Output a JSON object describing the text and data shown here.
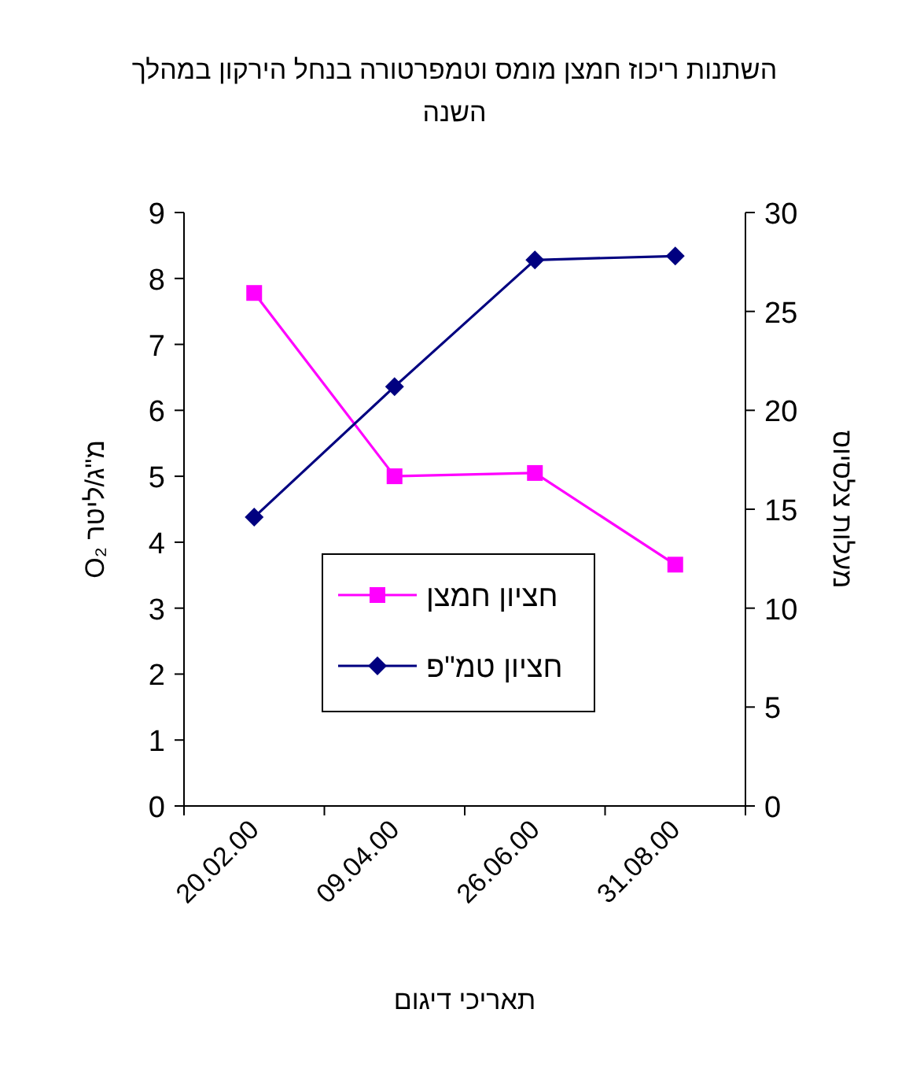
{
  "chart_data": {
    "type": "line",
    "title": "השתנות ריכוז חמצן מומס וטמפרטורה בנחל הירקון במהלך השנה",
    "xlabel": "תאריכי דיגום",
    "ylabel": "מ\"ג/ליטר O₂",
    "y2label": "מעלות צלסיוס",
    "categories": [
      "20.02.00",
      "09.04.00",
      "26.06.00",
      "31.08.00"
    ],
    "series": [
      {
        "name": "חציון חמצן",
        "color": "#ff00ff",
        "marker": "square",
        "values": [
          7.78,
          5.0,
          5.05,
          3.66
        ]
      },
      {
        "name": "חציון טמ\"פ",
        "color": "#000080",
        "marker": "diamond",
        "axis": "y2",
        "values": [
          14.6,
          21.2,
          27.6,
          27.8
        ]
      }
    ],
    "ylim": [
      0,
      9
    ],
    "yticks": [
      0,
      1,
      2,
      3,
      4,
      5,
      6,
      7,
      8,
      9
    ],
    "y2lim": [
      0,
      30
    ],
    "y2ticks": [
      0,
      5,
      10,
      15,
      20,
      25,
      30
    ],
    "legend": "bottom",
    "grid": false
  }
}
